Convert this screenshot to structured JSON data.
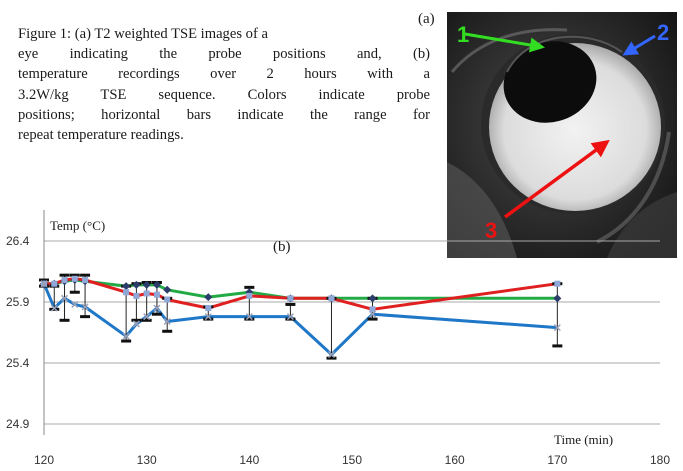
{
  "figure": {
    "caption_lines": [
      "Figure 1: (a) T2 weighted TSE images of a",
      "eye indicating the probe positions and, (b)",
      "temperature recordings over 2 hours with a",
      "3.2W/kg TSE sequence.  Colors indicate probe",
      "positions; horizontal bars indicate the range for",
      "repeat temperature readings."
    ],
    "panel_a": {
      "label": "(a)",
      "probe_labels": [
        {
          "text": "1",
          "color": "#33dd22"
        },
        {
          "text": "2",
          "color": "#3366ff"
        },
        {
          "text": "3",
          "color": "#ee1111"
        }
      ]
    }
  },
  "chart_data": {
    "type": "line",
    "panel_label": "(b)",
    "xlabel": "Time (min)",
    "ylabel": "Temp (°C)",
    "xlim": [
      120,
      180
    ],
    "ylim": [
      24.9,
      26.4
    ],
    "xticks": [
      120,
      130,
      140,
      150,
      160,
      170,
      180
    ],
    "yticks": [
      24.9,
      25.4,
      25.9,
      26.4
    ],
    "ytick_labels": [
      "24.9",
      "25.4",
      "25.9",
      "26.4"
    ],
    "grid": true,
    "series": [
      {
        "color": "#22aa44",
        "marker": "diamond",
        "x": [
          120,
          121,
          122,
          123,
          124,
          128,
          129,
          130,
          131,
          132,
          136,
          140,
          144,
          148,
          152,
          170
        ],
        "y": [
          26.05,
          26.05,
          26.07,
          26.08,
          26.07,
          26.03,
          26.04,
          26.04,
          26.04,
          26.0,
          25.94,
          25.98,
          25.93,
          25.93,
          25.93,
          25.93
        ]
      },
      {
        "color": "#e02020",
        "marker": "square",
        "x": [
          120,
          121,
          122,
          123,
          124,
          128,
          129,
          130,
          131,
          132,
          136,
          140,
          144,
          148,
          152,
          170
        ],
        "y": [
          26.05,
          26.05,
          26.08,
          26.09,
          26.08,
          25.98,
          25.95,
          25.97,
          25.96,
          25.92,
          25.85,
          25.95,
          25.93,
          25.93,
          25.84,
          26.05
        ]
      },
      {
        "color": "#1f77c8",
        "marker": "x",
        "x": [
          120,
          121,
          122,
          123,
          124,
          128,
          129,
          130,
          131,
          132,
          136,
          140,
          144,
          148,
          152,
          170
        ],
        "y": [
          26.05,
          25.85,
          25.93,
          25.88,
          25.86,
          25.62,
          25.72,
          25.78,
          25.85,
          25.74,
          25.78,
          25.78,
          25.78,
          25.47,
          25.8,
          25.69
        ]
      }
    ],
    "range_bars": [
      {
        "x": 120,
        "low": 26.03,
        "high": 26.08
      },
      {
        "x": 121,
        "low": 25.84,
        "high": 26.03
      },
      {
        "x": 122,
        "low": 25.75,
        "high": 26.12
      },
      {
        "x": 123,
        "low": 25.98,
        "high": 26.12
      },
      {
        "x": 124,
        "low": 25.78,
        "high": 26.12
      },
      {
        "x": 128,
        "low": 25.58,
        "high": 26.03
      },
      {
        "x": 129,
        "low": 25.75,
        "high": 26.05
      },
      {
        "x": 130,
        "low": 25.75,
        "high": 26.06
      },
      {
        "x": 131,
        "low": 25.8,
        "high": 26.06
      },
      {
        "x": 132,
        "low": 25.66,
        "high": 25.93
      },
      {
        "x": 136,
        "low": 25.76,
        "high": 25.86
      },
      {
        "x": 140,
        "low": 25.76,
        "high": 26.02
      },
      {
        "x": 144,
        "low": 25.76,
        "high": 25.88
      },
      {
        "x": 148,
        "low": 25.44,
        "high": 25.93
      },
      {
        "x": 152,
        "low": 25.76,
        "high": 25.93
      },
      {
        "x": 170,
        "low": 25.54,
        "high": 26.05
      }
    ]
  }
}
